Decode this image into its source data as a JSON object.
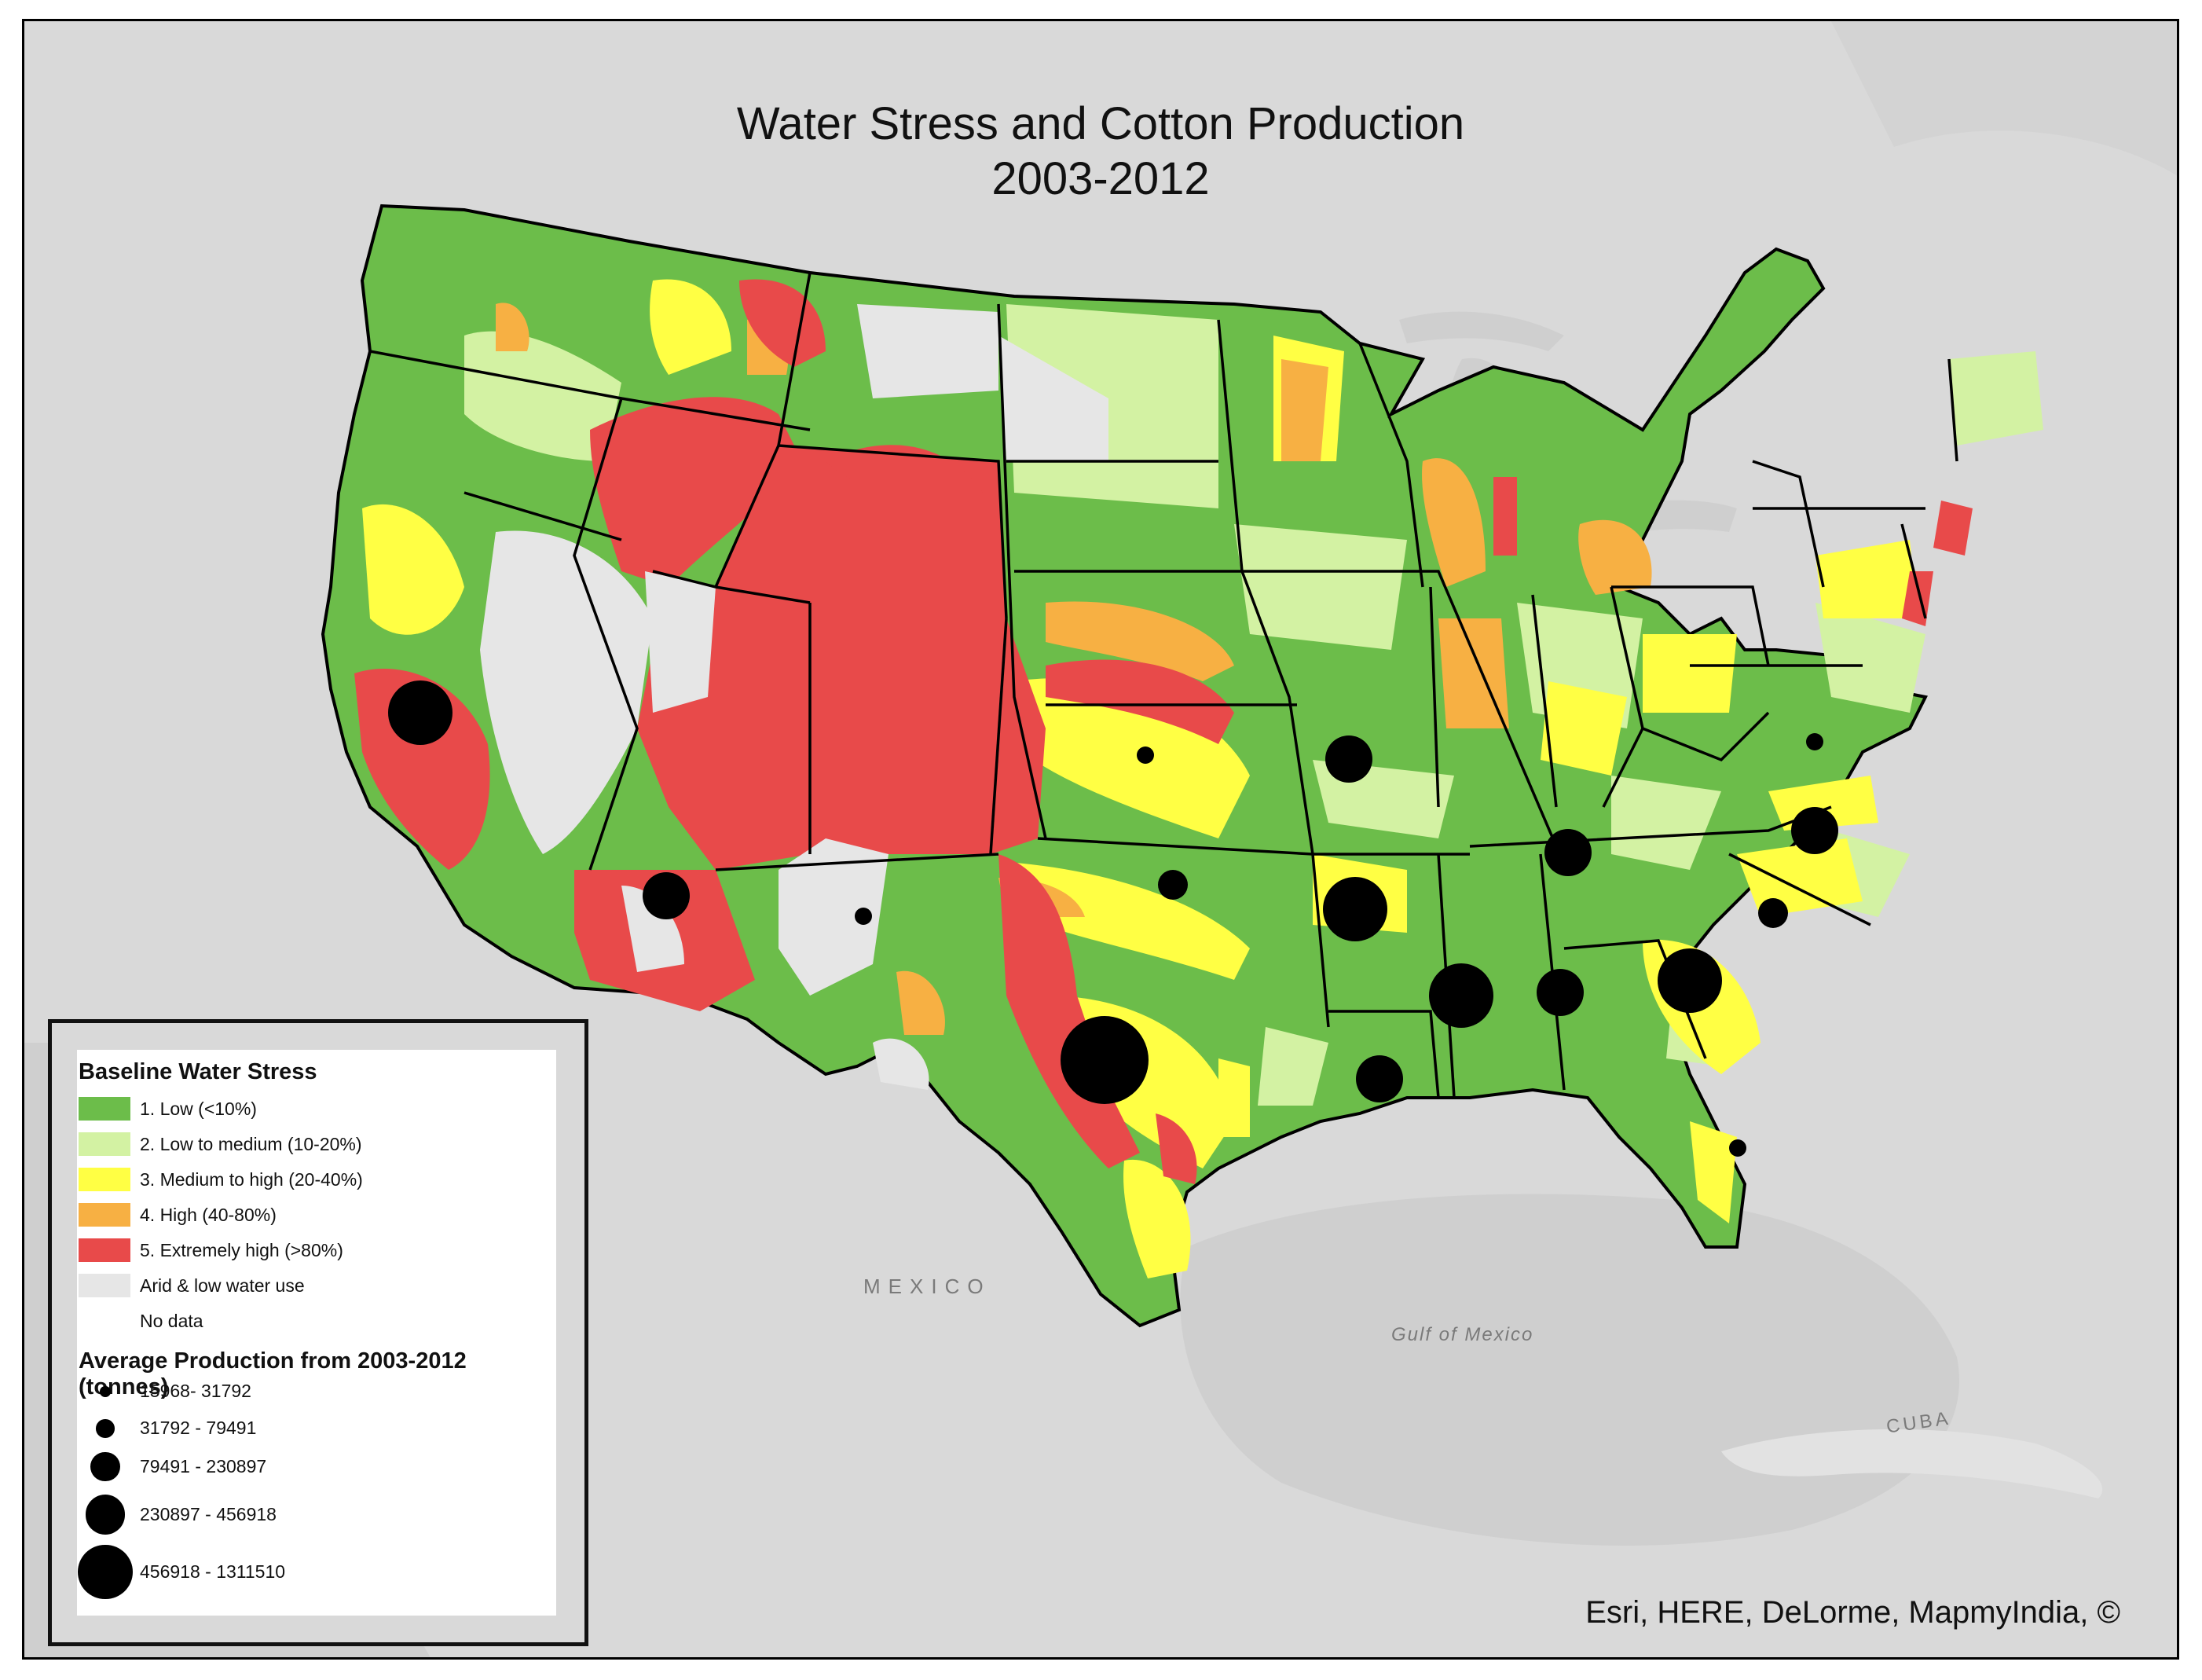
{
  "title": {
    "line1": "Water Stress and Cotton Production",
    "line2": "2003-2012"
  },
  "credits": "Esri, HERE, DeLorme, MapmyIndia, ©",
  "place_labels": {
    "mexico": "MEXICO",
    "gulf": "Gulf of Mexico",
    "cuba": "CUBA"
  },
  "colors": {
    "low": "#6cbd4a",
    "low_medium": "#d3f2a3",
    "medium_high": "#ffff44",
    "high": "#f7b043",
    "extremely_high": "#e84a4a",
    "arid": "#e6e6e6",
    "basemap_land": "#d9d9d9",
    "basemap_water": "#cfcfcf",
    "border": "#000000"
  },
  "legend": {
    "stress_heading": "Baseline Water Stress",
    "stress_items": [
      {
        "label": "1. Low (<10%)",
        "color": "#6cbd4a"
      },
      {
        "label": "2. Low to medium (10-20%)",
        "color": "#d3f2a3"
      },
      {
        "label": "3. Medium to high (20-40%)",
        "color": "#ffff44"
      },
      {
        "label": "4. High (40-80%)",
        "color": "#f7b043"
      },
      {
        "label": "5. Extremely high (>80%)",
        "color": "#e84a4a"
      },
      {
        "label": "Arid & low water use",
        "color": "#e6e6e6"
      },
      {
        "label": "No data",
        "color": "#ffffff"
      }
    ],
    "production_heading": "Average Production from 2003-2012 (tonnes)",
    "production_items": [
      {
        "label": "15968- 31792",
        "class": 1
      },
      {
        "label": "31792 - 79491",
        "class": 2
      },
      {
        "label": "79491 - 230897",
        "class": 3
      },
      {
        "label": "230897 - 456918",
        "class": 4
      },
      {
        "label": "456918 - 1311510",
        "class": 5
      }
    ]
  },
  "production_points": [
    {
      "state": "California",
      "class": 4
    },
    {
      "state": "Arizona",
      "class": 3
    },
    {
      "state": "New Mexico",
      "class": 1
    },
    {
      "state": "Kansas",
      "class": 1
    },
    {
      "state": "Oklahoma",
      "class": 2
    },
    {
      "state": "Texas",
      "class": 5
    },
    {
      "state": "Missouri",
      "class": 3
    },
    {
      "state": "Arkansas",
      "class": 4
    },
    {
      "state": "Louisiana",
      "class": 3
    },
    {
      "state": "Mississippi",
      "class": 4
    },
    {
      "state": "Tennessee",
      "class": 3
    },
    {
      "state": "Alabama",
      "class": 3
    },
    {
      "state": "Georgia",
      "class": 4
    },
    {
      "state": "South Carolina",
      "class": 2
    },
    {
      "state": "North Carolina",
      "class": 3
    },
    {
      "state": "Virginia",
      "class": 1
    },
    {
      "state": "Florida",
      "class": 1
    }
  ]
}
